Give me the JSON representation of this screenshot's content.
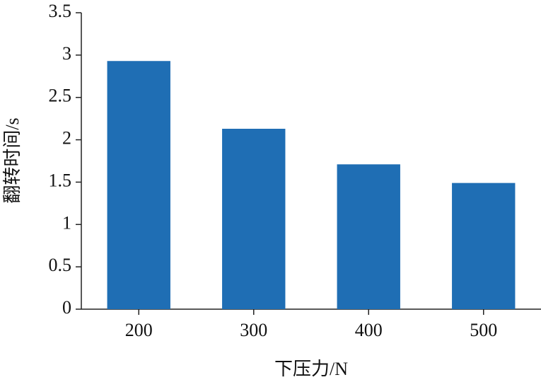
{
  "chart_data": {
    "type": "bar",
    "x_label": "下压力/N",
    "y_label": "翻转时间/s",
    "categories": [
      "200",
      "300",
      "400",
      "500"
    ],
    "values": [
      2.93,
      2.13,
      1.71,
      1.49
    ],
    "color": "#1f6eb4",
    "ylim": [
      0,
      3.5
    ],
    "yticks": [
      0,
      0.5,
      1,
      1.5,
      2,
      2.5,
      3,
      3.5
    ],
    "grid": false
  }
}
